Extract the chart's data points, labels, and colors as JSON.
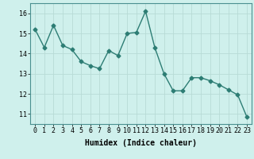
{
  "x": [
    0,
    1,
    2,
    3,
    4,
    5,
    6,
    7,
    8,
    9,
    10,
    11,
    12,
    13,
    14,
    15,
    16,
    17,
    18,
    19,
    20,
    21,
    22,
    23
  ],
  "y": [
    15.2,
    14.3,
    15.4,
    14.4,
    14.2,
    13.6,
    13.4,
    13.25,
    14.15,
    13.9,
    15.0,
    15.05,
    16.1,
    14.3,
    13.0,
    12.15,
    12.15,
    12.8,
    12.8,
    12.65,
    12.45,
    12.2,
    11.95,
    10.85
  ],
  "line_color": "#2d7d74",
  "marker": "D",
  "markersize": 2.5,
  "linewidth": 1.0,
  "xlabel": "Humidex (Indice chaleur)",
  "ylim": [
    10.5,
    16.5
  ],
  "xlim": [
    -0.5,
    23.5
  ],
  "yticks": [
    11,
    12,
    13,
    14,
    15,
    16
  ],
  "xticks": [
    0,
    1,
    2,
    3,
    4,
    5,
    6,
    7,
    8,
    9,
    10,
    11,
    12,
    13,
    14,
    15,
    16,
    17,
    18,
    19,
    20,
    21,
    22,
    23
  ],
  "bg_color": "#cff0ec",
  "grid_color": "#b8dbd6",
  "label_fontsize": 7,
  "tick_fontsize": 6
}
